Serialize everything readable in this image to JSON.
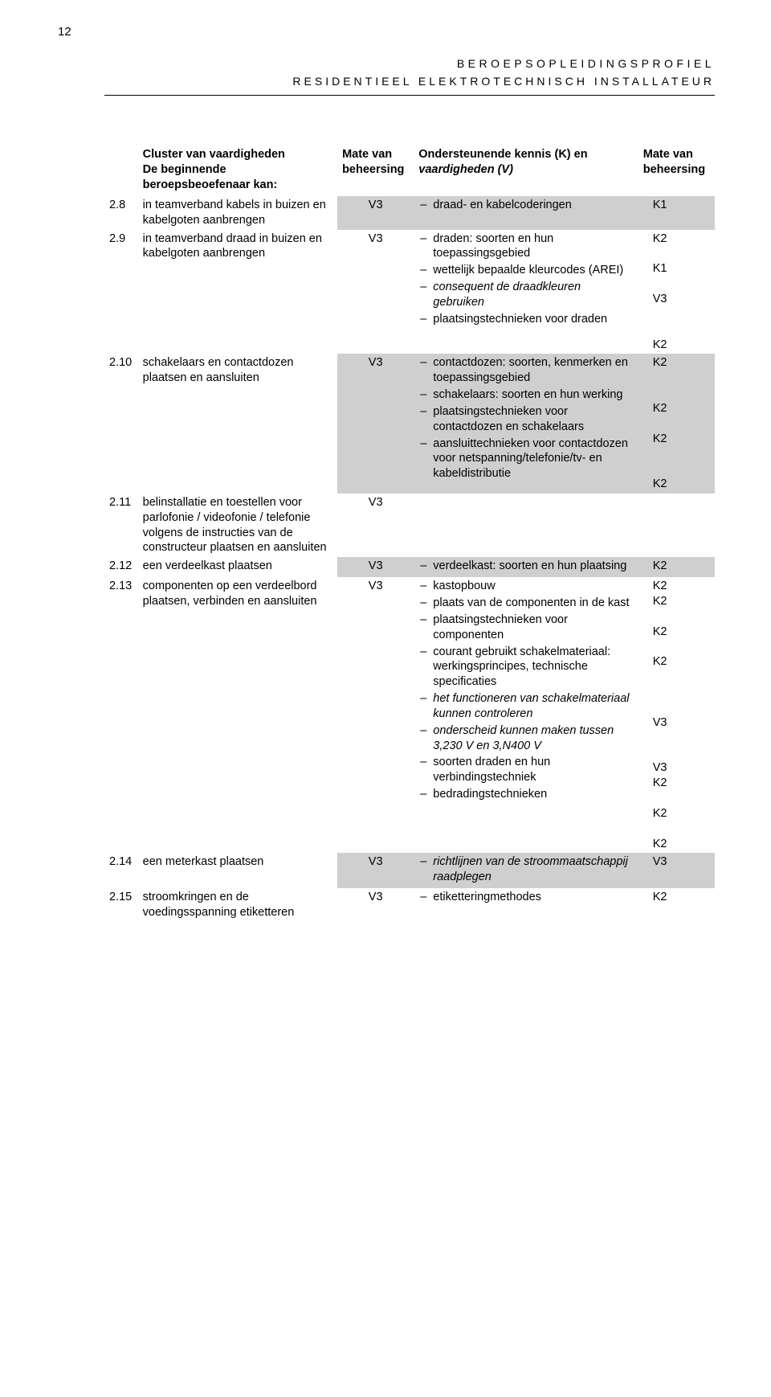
{
  "page_number": "12",
  "header_line1": "BEROEPSOPLEIDINGSPROFIEL",
  "header_line2": "RESIDENTIEEL ELEKTROTECHNISCH INSTALLATEUR",
  "columns": {
    "c1": "Cluster van vaardigheden\nDe beginnende beroepsbeoefenaar kan:",
    "c2": "Mate van beheersing",
    "c3a": "Ondersteunende ",
    "c3b": "kennis (K)",
    "c3c": " en ",
    "c3d": "vaardigheden (V)",
    "c4": "Mate van beheersing"
  },
  "rows": [
    {
      "num": "2.8",
      "left": "in teamverband kabels in buizen en kabelgoten aanbrengen",
      "m1": "V3",
      "k_items": [
        {
          "t": "draad- en kabelcoderingen",
          "i": false
        }
      ],
      "m2": [
        "K1"
      ],
      "shade": true
    },
    {
      "num": "2.9",
      "left": "in teamverband draad in buizen en kabelgoten aanbrengen",
      "m1": "V3",
      "k_items": [
        {
          "t": "draden: soorten en hun toepassingsgebied",
          "i": false
        },
        {
          "t": "wettelijk bepaalde kleurcodes (AREI)",
          "i": false
        },
        {
          "t": "consequent de draadkleuren gebruiken",
          "i": true
        },
        {
          "t": "plaatsingstechnieken voor draden",
          "i": false
        }
      ],
      "m2": [
        "K2",
        "",
        "K1",
        "",
        "V3",
        "",
        "",
        "K2"
      ],
      "shade": false
    },
    {
      "num": "2.10",
      "left": "schakelaars en contactdozen plaatsen en aansluiten",
      "m1": "V3",
      "k_items": [
        {
          "t": "contactdozen: soorten, kenmerken en toepassingsgebied",
          "i": false
        },
        {
          "t": "schakelaars: soorten en hun werking",
          "i": false
        },
        {
          "t": "plaatsingstechnieken voor contactdozen en schakelaars",
          "i": false
        },
        {
          "t": "aansluittechnieken voor contactdozen voor netspanning/telefonie/tv- en kabeldistributie",
          "i": false
        }
      ],
      "m2": [
        "K2",
        "",
        "",
        "K2",
        "",
        "K2",
        "",
        "",
        "K2"
      ],
      "shade": true
    },
    {
      "num": "2.11",
      "left": "belinstallatie en toestellen voor parlofonie / videofonie / telefonie volgens de instructies van de constructeur plaatsen en aansluiten",
      "m1": "V3",
      "k_items": [],
      "m2": [],
      "shade": false
    },
    {
      "num": "2.12",
      "left": "een verdeelkast plaatsen",
      "m1": "V3",
      "k_items": [
        {
          "t": "verdeelkast: soorten en hun plaatsing",
          "i": false
        }
      ],
      "m2": [
        "K2"
      ],
      "shade": true
    },
    {
      "num": "2.13",
      "left": "componenten op een verdeelbord plaatsen, verbinden en aansluiten",
      "m1": "V3",
      "k_items": [
        {
          "t": "kastopbouw",
          "i": false
        },
        {
          "t": "plaats van de componenten in de kast",
          "i": false
        },
        {
          "t": "plaatsingstechnieken voor componenten",
          "i": false
        },
        {
          "t": "courant gebruikt schakelmateriaal: werkingsprincipes, technische specificaties",
          "i": false
        },
        {
          "t": "het functioneren van schakelmateriaal kunnen controleren",
          "i": true
        },
        {
          "t": "onderscheid kunnen maken tussen 3,230 V en 3,N400 V",
          "i": true
        },
        {
          "t": "soorten draden en hun verbindingstechniek",
          "i": false
        },
        {
          "t": "bedradingstechnieken",
          "i": false
        }
      ],
      "m2": [
        "K2",
        "K2",
        "",
        "K2",
        "",
        "K2",
        "",
        "",
        "",
        "V3",
        "",
        "",
        "V3",
        "K2",
        "",
        "K2",
        "",
        "K2"
      ],
      "shade": false
    },
    {
      "num": "2.14",
      "left": "een meterkast plaatsen",
      "m1": "V3",
      "k_items": [
        {
          "t": "richtlijnen van de stroommaatschappij raadplegen",
          "i": true
        }
      ],
      "m2": [
        "V3"
      ],
      "shade": true
    },
    {
      "num": "2.15",
      "left": "stroomkringen en de voedingsspanning etiketteren",
      "m1": "V3",
      "k_items": [
        {
          "t": "etiketteringmethodes",
          "i": false
        }
      ],
      "m2": [
        "K2"
      ],
      "shade": false
    }
  ]
}
